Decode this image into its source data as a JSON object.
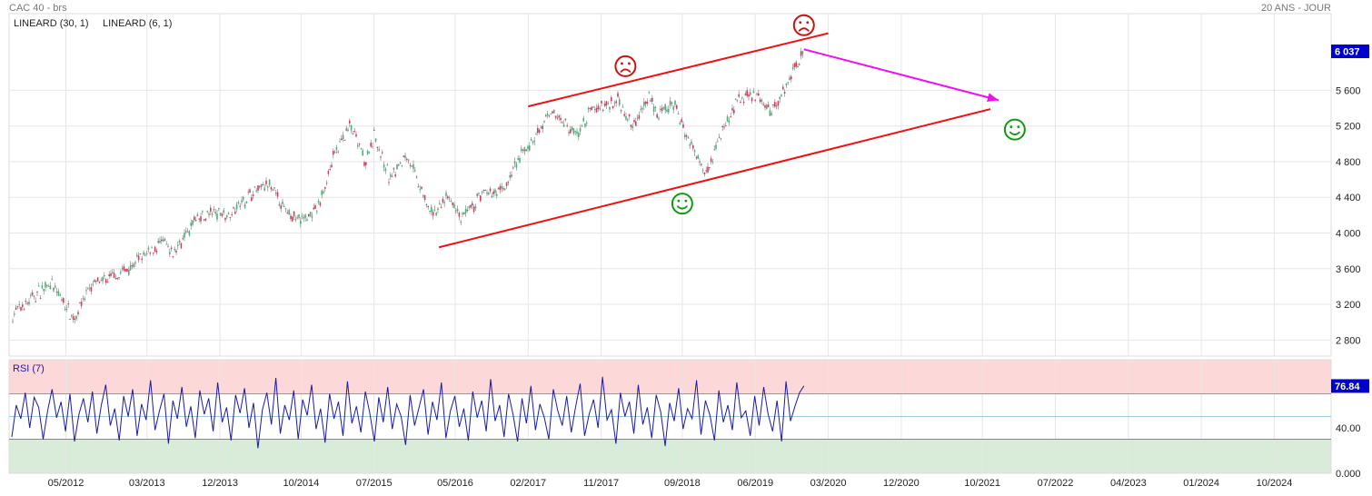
{
  "header": {
    "instrument": "CAC 40 - brs",
    "period": "20 ANS - JOUR",
    "indicator_1": "LINEARD (30, 1)",
    "indicator_2": "LINEARD (6, 1)"
  },
  "colors": {
    "bull_candle": "#4caf78",
    "bear_candle": "#d63a5a",
    "channel_line": "#ee1111",
    "projection_arrow": "#ee11ee",
    "sad_face": "#cc1111",
    "happy_face": "#119911",
    "rsi_line": "#1a1aa6",
    "rsi_overbought_zone": "#fdd8d8",
    "rsi_oversold_zone": "#d9ecd9",
    "price_badge": "#0000cc"
  },
  "chart_data": [
    {
      "type": "line",
      "title": "CAC 40 - brs",
      "subtitle": "20 ANS - JOUR",
      "chart_style": "candlestick",
      "x_ticks": [
        "05/2012",
        "03/2013",
        "12/2013",
        "10/2014",
        "07/2015",
        "05/2016",
        "02/2017",
        "11/2017",
        "09/2018",
        "06/2019",
        "03/2020",
        "12/2020",
        "10/2021",
        "07/2022",
        "04/2023",
        "01/2024",
        "10/2024"
      ],
      "y_ticks": [
        "2 800",
        "3 200",
        "3 600",
        "4 000",
        "4 400",
        "4 800",
        "5 200",
        "5 600"
      ],
      "ylim": [
        2620,
        6460
      ],
      "last_price_label": "6 037",
      "last_price": 6037,
      "series": [
        {
          "name": "",
          "x": [
            "2011-10",
            "2011-12",
            "2012-03",
            "2012-06",
            "2012-08",
            "2012-11",
            "2013-02",
            "2013-05",
            "2013-06",
            "2013-09",
            "2013-12",
            "2014-01",
            "2014-04",
            "2014-06",
            "2014-08",
            "2014-10",
            "2014-12",
            "2015-02",
            "2015-04",
            "2015-06",
            "2015-07",
            "2015-09",
            "2015-11",
            "2016-02",
            "2016-04",
            "2016-06",
            "2016-08",
            "2016-11",
            "2017-01",
            "2017-03",
            "2017-05",
            "2017-08",
            "2017-10",
            "2017-12",
            "2018-01",
            "2018-03",
            "2018-05",
            "2018-06",
            "2018-08",
            "2018-10",
            "2018-12",
            "2019-02",
            "2019-04",
            "2019-06",
            "2019-08",
            "2019-10",
            "2019-12"
          ],
          "values": [
            3050,
            3200,
            3450,
            3050,
            3400,
            3500,
            3700,
            3900,
            3750,
            4150,
            4250,
            4200,
            4450,
            4550,
            4250,
            4150,
            4250,
            4850,
            5200,
            4800,
            5100,
            4600,
            4900,
            4200,
            4400,
            4150,
            4400,
            4500,
            4850,
            5100,
            5350,
            5100,
            5400,
            5450,
            5500,
            5200,
            5550,
            5300,
            5450,
            5000,
            4700,
            5150,
            5500,
            5550,
            5350,
            5700,
            6037
          ]
        }
      ],
      "annotations": [
        {
          "kind": "line",
          "label": "",
          "from": {
            "x": "2016-03",
            "y": 3840
          },
          "to": {
            "x": "2021-11",
            "y": 5390
          }
        },
        {
          "kind": "line",
          "label": "",
          "from": {
            "x": "2017-02",
            "y": 5420
          },
          "to": {
            "x": "2020-03",
            "y": 6240
          }
        },
        {
          "kind": "arrow",
          "label": "",
          "from": {
            "x": "2019-12",
            "y": 6060
          },
          "to": {
            "x": "2021-12",
            "y": 5490
          }
        },
        {
          "kind": "sad-face",
          "x": "2018-02",
          "y": 5870
        },
        {
          "kind": "sad-face",
          "x": "2019-12",
          "y": 6330
        },
        {
          "kind": "happy-face",
          "x": "2018-09",
          "y": 4330
        },
        {
          "kind": "happy-face",
          "x": "2022-02",
          "y": 5160
        }
      ]
    },
    {
      "type": "line",
      "title": "RSI (7)",
      "x_ticks": [
        "05/2012",
        "03/2013",
        "12/2013",
        "10/2014",
        "07/2015",
        "05/2016",
        "02/2017",
        "11/2017",
        "09/2018",
        "06/2019",
        "03/2020",
        "12/2020",
        "10/2021",
        "07/2022",
        "04/2023",
        "01/2024",
        "10/2024"
      ],
      "y_ticks": [
        "0.000",
        "40.00"
      ],
      "ylim": [
        0,
        100
      ],
      "last_value_label": "76.84",
      "last_value": 76.84,
      "overbought_level": 70,
      "oversold_level": 30,
      "mid_level": 50,
      "series": [
        {
          "name": "RSI (7)",
          "x_range": [
            "2011-10",
            "2019-12"
          ],
          "values": [
            32,
            60,
            48,
            71,
            40,
            67,
            58,
            30,
            55,
            74,
            49,
            63,
            37,
            70,
            28,
            52,
            66,
            45,
            72,
            35,
            60,
            78,
            42,
            57,
            29,
            68,
            50,
            74,
            33,
            61,
            47,
            82,
            38,
            55,
            70,
            26,
            64,
            48,
            76,
            41,
            59,
            31,
            73,
            52,
            66,
            37,
            80,
            45,
            58,
            29,
            69,
            53,
            75,
            40,
            62,
            22,
            56,
            71,
            43,
            84,
            35,
            60,
            47,
            73,
            30,
            65,
            51,
            78,
            39,
            57,
            27,
            70,
            48,
            63,
            33,
            81,
            44,
            59,
            36,
            72,
            53,
            28,
            67,
            45,
            76,
            39,
            61,
            50,
            25,
            69,
            42,
            58,
            74,
            34,
            63,
            47,
            80,
            31,
            55,
            68,
            41,
            57,
            29,
            72,
            49,
            64,
            37,
            83,
            46,
            60,
            32,
            70,
            52,
            28,
            66,
            44,
            77,
            38,
            61,
            49,
            30,
            74,
            55,
            42,
            68,
            36,
            59,
            79,
            33,
            52,
            65,
            40,
            85,
            47,
            56,
            26,
            71,
            50,
            63,
            35,
            78,
            43,
            58,
            31,
            69,
            54,
            24,
            62,
            46,
            75,
            39,
            57,
            48,
            82,
            34,
            64,
            51,
            29,
            73,
            45,
            60,
            38,
            80,
            49,
            55,
            33,
            68,
            42,
            76,
            52,
            37,
            64,
            28,
            81,
            46,
            59,
            71,
            77
          ]
        }
      ]
    }
  ]
}
